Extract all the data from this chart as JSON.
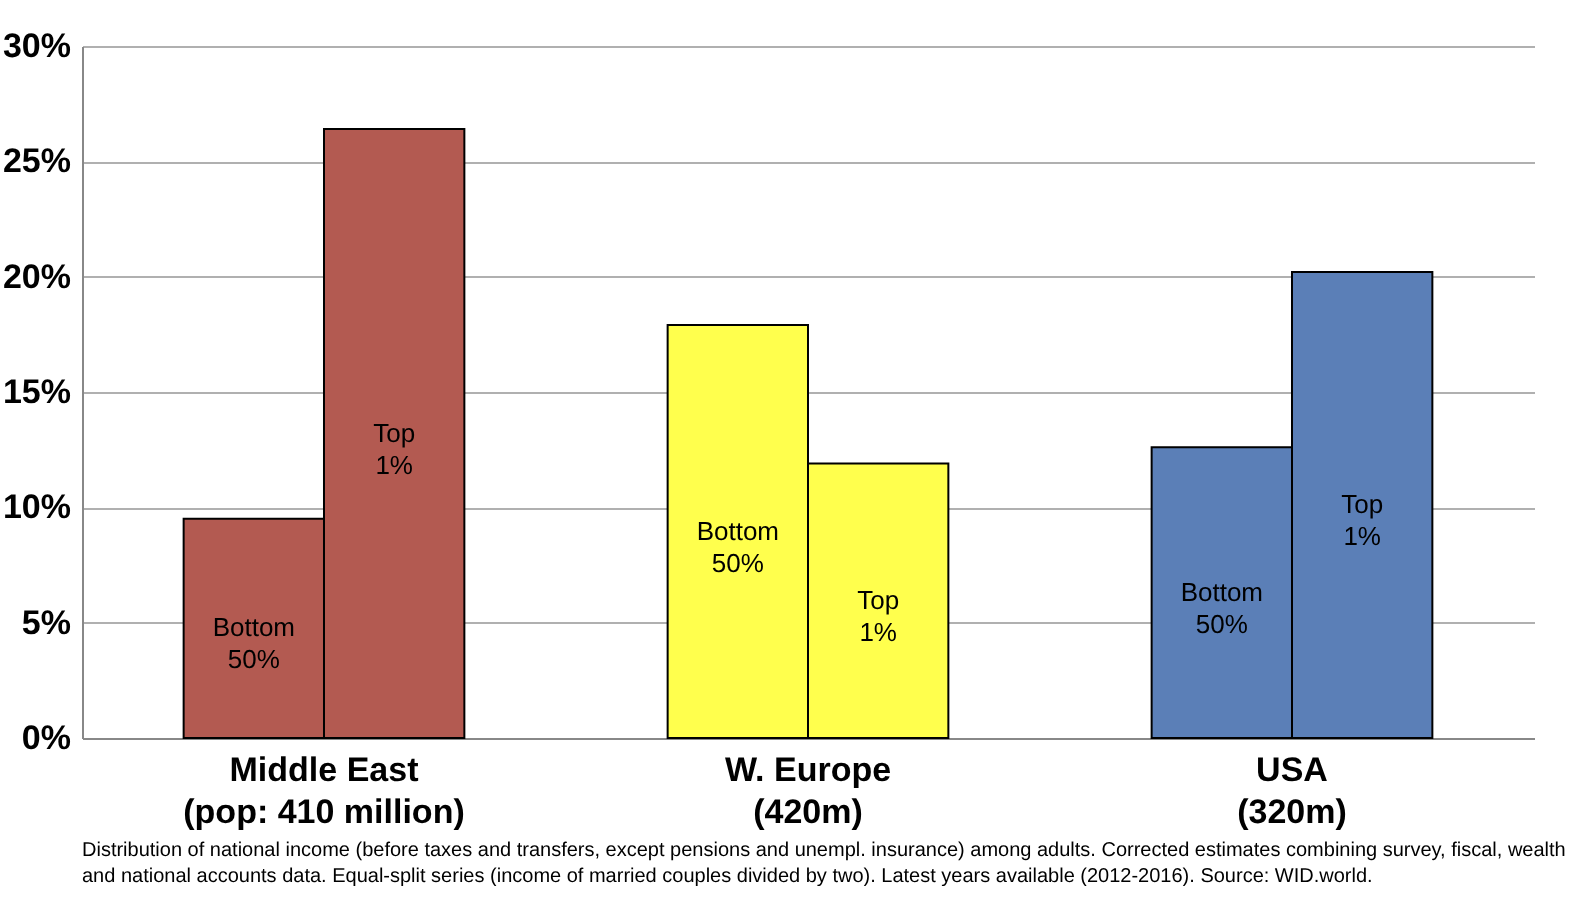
{
  "chart_data": {
    "type": "bar",
    "categories": [
      "Middle East\n(pop: 410 million)",
      "W. Europe\n(420m)",
      "USA\n(320m)"
    ],
    "series": [
      {
        "name": "Bottom 50%",
        "colors": [
          "#b35a51",
          "#ffff4d",
          "#5b7fb7"
        ],
        "values": [
          9.5,
          17.9,
          12.6
        ]
      },
      {
        "name": "Top 1%",
        "colors": [
          "#b35a51",
          "#ffff4d",
          "#5b7fb7"
        ],
        "values": [
          26.4,
          11.9,
          20.2
        ]
      }
    ],
    "ylim": [
      0,
      30
    ],
    "yticks": [
      {
        "value": 0,
        "label": "0%"
      },
      {
        "value": 5,
        "label": "5%"
      },
      {
        "value": 10,
        "label": "10%"
      },
      {
        "value": 15,
        "label": "15%"
      },
      {
        "value": 20,
        "label": "20%"
      },
      {
        "value": 25,
        "label": "25%"
      },
      {
        "value": 30,
        "label": "30%"
      }
    ],
    "grid": "y",
    "annotations": [
      "Distribution of national income (before taxes and transfers, except pensions and unempl. insurance) among adults. Corrected estimates combining survey, fiscal, wealth and national accounts data. Equal-split series (income of married couples divided by two). Latest years available (2012-2016). Source: WID.world."
    ]
  }
}
